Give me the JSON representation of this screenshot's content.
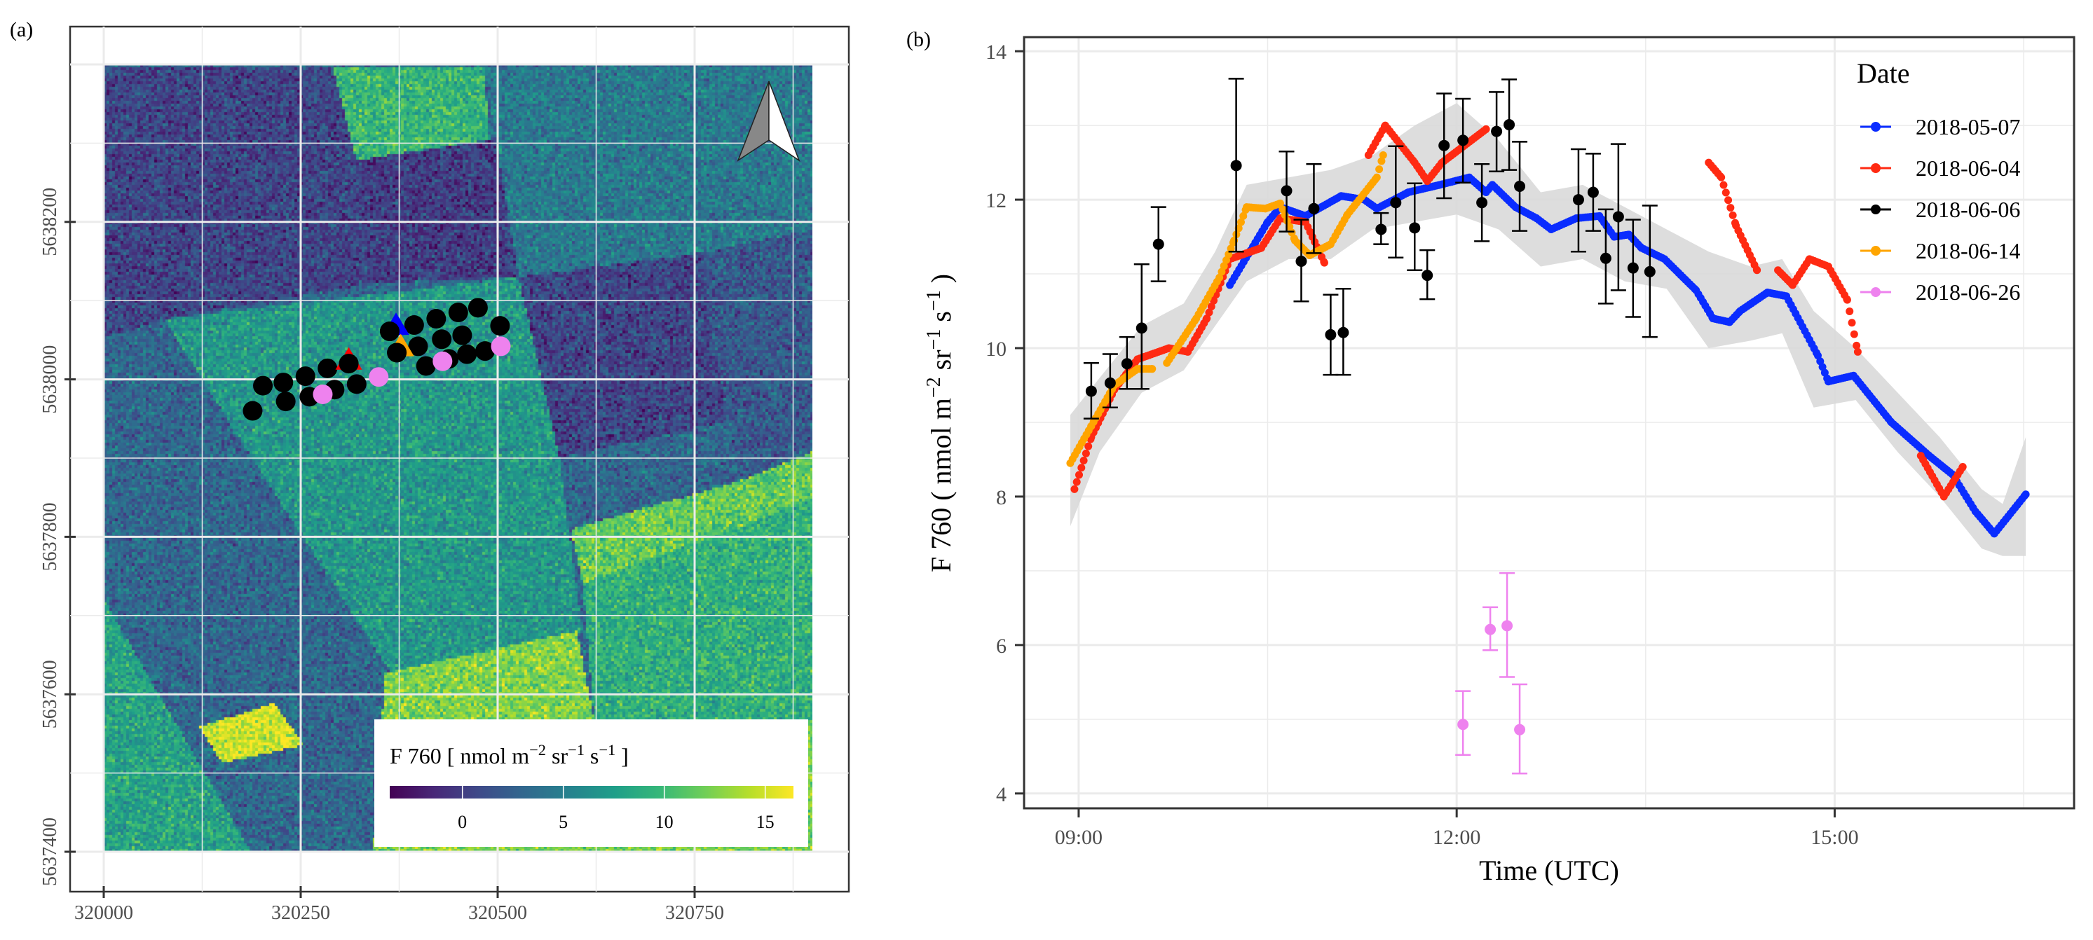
{
  "chart_data": [
    {
      "panel_label": "(a)",
      "type": "heatmap",
      "x_ticks": [
        320000,
        320250,
        320500,
        320750
      ],
      "y_ticks": [
        5637400,
        5637600,
        5637800,
        5638000,
        5638200
      ],
      "xlim": [
        320000,
        320899
      ],
      "ylim": [
        5637400,
        5638400
      ],
      "grid": true,
      "north_arrow": "top-right",
      "colorbar": {
        "title": "F 760 [ nmol  m",
        "title_sup1": "−2",
        "title_mid1": " sr",
        "title_sup2": "−1",
        "title_mid2": "  s",
        "title_sup3": "−1",
        "title_end": " ]",
        "ticks": [
          0,
          5,
          10,
          15
        ],
        "range": [
          -3.6,
          16.4
        ],
        "colormap": "viridis",
        "placement": "bottom-right"
      },
      "points": {
        "black_circles": [
          [
            320189,
            5637960
          ],
          [
            320202,
            5637992
          ],
          [
            320228,
            5637996
          ],
          [
            320231,
            5637972
          ],
          [
            320256,
            5638004
          ],
          [
            320261,
            5637978
          ],
          [
            320284,
            5638014
          ],
          [
            320293,
            5637987
          ],
          [
            320311,
            5638020
          ],
          [
            320321,
            5637994
          ],
          [
            320363,
            5638061
          ],
          [
            320372,
            5638034
          ],
          [
            320394,
            5638069
          ],
          [
            320399,
            5638042
          ],
          [
            320409,
            5638017
          ],
          [
            320422,
            5638077
          ],
          [
            320429,
            5638051
          ],
          [
            320438,
            5638026
          ],
          [
            320450,
            5638085
          ],
          [
            320455,
            5638056
          ],
          [
            320461,
            5638032
          ],
          [
            320475,
            5638091
          ],
          [
            320484,
            5638036
          ],
          [
            320503,
            5638068
          ]
        ],
        "pink_circles": [
          [
            320278,
            5637981
          ],
          [
            320349,
            5638003
          ],
          [
            320430,
            5638023
          ],
          [
            320504,
            5638042
          ]
        ],
        "triangles": [
          {
            "color": "#ff0000",
            "pos": [
              320311,
              5638023
            ]
          },
          {
            "color": "#0000ff",
            "pos": [
              320371,
              5638067
            ]
          },
          {
            "color": "#ffa500",
            "pos": [
              320377,
              5638040
            ]
          }
        ]
      }
    },
    {
      "panel_label": "(b)",
      "type": "scatter",
      "xlabel": "Time (UTC)",
      "ylabel": {
        "main": "F 760 ( nmol  m",
        "sup1": "−2",
        "mid1": "  sr",
        "sup2": "−1",
        "mid2": "  s",
        "sup3": "−1",
        "end": " )"
      },
      "x_ticks": [
        "09:00",
        "12:00",
        "15:00"
      ],
      "y_ticks": [
        4,
        6,
        8,
        10,
        12,
        14
      ],
      "xlim": [
        "08:34",
        "16:54"
      ],
      "ylim": [
        3.8,
        14.19
      ],
      "grid": true,
      "legend": {
        "title": "Date",
        "placement": "top-right"
      },
      "band_color": "#d9d9d9",
      "band": [
        [
          "08:56",
          7.6,
          9.1
        ],
        [
          "09:10",
          8.6,
          9.6
        ],
        [
          "09:30",
          9.4,
          10.3
        ],
        [
          "09:50",
          9.7,
          10.6
        ],
        [
          "10:05",
          10.3,
          11.3
        ],
        [
          "10:20",
          10.9,
          12.2
        ],
        [
          "10:40",
          11.2,
          12.3
        ],
        [
          "11:00",
          11.2,
          12.4
        ],
        [
          "11:20",
          11.6,
          12.6
        ],
        [
          "11:40",
          11.7,
          13.0
        ],
        [
          "12:00",
          11.8,
          13.3
        ],
        [
          "12:20",
          11.6,
          12.8
        ],
        [
          "12:40",
          11.1,
          12.1
        ],
        [
          "13:00",
          11.2,
          12.2
        ],
        [
          "13:20",
          10.9,
          11.9
        ],
        [
          "13:40",
          10.8,
          11.6
        ],
        [
          "14:00",
          10.0,
          11.3
        ],
        [
          "14:20",
          10.1,
          11.1
        ],
        [
          "14:35",
          10.2,
          11.2
        ],
        [
          "14:50",
          9.2,
          10.5
        ],
        [
          "15:10",
          9.3,
          10.0
        ],
        [
          "15:30",
          8.6,
          9.4
        ],
        [
          "15:50",
          8.0,
          8.8
        ],
        [
          "16:10",
          7.3,
          8.1
        ],
        [
          "16:20",
          7.2,
          7.9
        ],
        [
          "16:31",
          7.2,
          8.8
        ]
      ],
      "series": [
        {
          "name": "2018-05-07",
          "color": "#0a2cff",
          "kind": "continuous",
          "segments": [
            [
              [
                "10:12",
                10.85
              ],
              [
                "10:30",
                11.7
              ],
              [
                "10:36",
                11.9
              ],
              [
                "10:48",
                11.78
              ],
              [
                "11:05",
                12.05
              ],
              [
                "11:16",
                12.0
              ],
              [
                "11:22",
                11.88
              ],
              [
                "11:37",
                12.1
              ],
              [
                "11:52",
                12.2
              ],
              [
                "12:06",
                12.3
              ],
              [
                "12:14",
                12.1
              ],
              [
                "12:17",
                12.2
              ],
              [
                "12:28",
                11.9
              ],
              [
                "12:38",
                11.75
              ],
              [
                "12:45",
                11.6
              ],
              [
                "12:57",
                11.75
              ],
              [
                "13:08",
                11.78
              ],
              [
                "13:15",
                11.5
              ],
              [
                "13:22",
                11.53
              ],
              [
                "13:28",
                11.35
              ],
              [
                "13:39",
                11.2
              ],
              [
                "13:54",
                10.78
              ],
              [
                "14:02",
                10.4
              ],
              [
                "14:10",
                10.35
              ],
              [
                "14:15",
                10.5
              ],
              [
                "14:28",
                10.75
              ],
              [
                "14:37",
                10.7
              ],
              [
                "14:52",
                9.9
              ],
              [
                "14:57",
                9.55
              ],
              [
                "15:09",
                9.63
              ],
              [
                "15:27",
                9.0
              ],
              [
                "15:45",
                8.55
              ],
              [
                "15:56",
                8.3
              ],
              [
                "16:07",
                7.8
              ],
              [
                "16:16",
                7.5
              ],
              [
                "16:31",
                8.03
              ]
            ]
          ]
        },
        {
          "name": "2018-06-04",
          "color": "#ff2a12",
          "kind": "continuous",
          "segments": [
            [
              [
                "08:58",
                8.1
              ],
              [
                "09:06",
                8.8
              ],
              [
                "09:17",
                9.44
              ],
              [
                "09:28",
                9.85
              ],
              [
                "09:43",
                10.0
              ],
              [
                "09:52",
                9.95
              ],
              [
                "10:01",
                10.4
              ],
              [
                "10:12",
                11.2
              ],
              [
                "10:27",
                11.35
              ],
              [
                "10:36",
                11.75
              ],
              [
                "10:48",
                11.7
              ],
              [
                "10:57",
                11.15
              ]
            ],
            [
              [
                "11:18",
                12.6
              ],
              [
                "11:26",
                13.0
              ],
              [
                "11:40",
                12.5
              ],
              [
                "11:46",
                12.25
              ],
              [
                "11:53",
                12.5
              ],
              [
                "12:14",
                12.95
              ]
            ],
            [
              [
                "14:00",
                12.5
              ],
              [
                "14:06",
                12.3
              ],
              [
                "14:13",
                11.65
              ],
              [
                "14:23",
                11.05
              ]
            ],
            [
              [
                "14:33",
                11.05
              ],
              [
                "14:40",
                10.85
              ],
              [
                "14:48",
                11.2
              ],
              [
                "14:57",
                11.1
              ],
              [
                "15:06",
                10.65
              ],
              [
                "15:11",
                9.95
              ]
            ],
            [
              [
                "15:41",
                8.55
              ],
              [
                "15:52",
                8.0
              ],
              [
                "16:01",
                8.4
              ]
            ]
          ]
        },
        {
          "name": "2018-06-06",
          "color": "#000000",
          "kind": "errorbar",
          "points": [
            [
              "09:06",
              9.42,
              9.05,
              9.8
            ],
            [
              "09:15",
              9.53,
              9.2,
              9.92
            ],
            [
              "09:23",
              9.79,
              9.45,
              10.15
            ],
            [
              "09:30",
              10.27,
              9.45,
              11.13
            ],
            [
              "09:38",
              11.4,
              10.9,
              11.9
            ],
            [
              "10:15",
              12.46,
              11.3,
              13.63
            ],
            [
              "10:39",
              12.12,
              11.57,
              12.65
            ],
            [
              "10:46",
              11.17,
              10.63,
              11.73
            ],
            [
              "10:52",
              11.88,
              11.28,
              12.48
            ],
            [
              "11:00",
              10.18,
              9.64,
              10.72
            ],
            [
              "11:06",
              10.21,
              9.64,
              10.8
            ],
            [
              "11:24",
              11.6,
              11.4,
              11.82
            ],
            [
              "11:31",
              11.96,
              11.22,
              12.72
            ],
            [
              "11:40",
              11.62,
              11.05,
              12.22
            ],
            [
              "11:46",
              10.98,
              10.66,
              11.32
            ],
            [
              "11:54",
              12.73,
              12.02,
              13.43
            ],
            [
              "12:03",
              12.8,
              12.23,
              13.36
            ],
            [
              "12:12",
              11.96,
              11.44,
              12.48
            ],
            [
              "12:19",
              12.92,
              12.38,
              13.45
            ],
            [
              "12:25",
              13.01,
              12.4,
              13.62
            ],
            [
              "12:30",
              12.18,
              11.58,
              12.78
            ],
            [
              "12:58",
              12.0,
              11.3,
              12.68
            ],
            [
              "13:05",
              12.1,
              11.58,
              12.62
            ],
            [
              "13:11",
              11.21,
              10.6,
              11.87
            ],
            [
              "13:17",
              11.77,
              10.78,
              12.75
            ],
            [
              "13:24",
              11.08,
              10.42,
              11.73
            ],
            [
              "13:32",
              11.03,
              10.15,
              11.92
            ]
          ]
        },
        {
          "name": "2018-06-14",
          "color": "#ffa500",
          "kind": "continuous",
          "segments": [
            [
              [
                "08:56",
                8.45
              ],
              [
                "09:06",
                8.95
              ],
              [
                "09:17",
                9.5
              ],
              [
                "09:28",
                9.72
              ],
              [
                "09:35",
                9.72
              ]
            ],
            [
              [
                "09:42",
                9.8
              ],
              [
                "09:56",
                10.4
              ],
              [
                "10:07",
                10.95
              ],
              [
                "10:14",
                11.45
              ],
              [
                "10:20",
                11.9
              ],
              [
                "10:29",
                11.88
              ],
              [
                "10:36",
                11.95
              ],
              [
                "10:43",
                11.45
              ],
              [
                "10:50",
                11.25
              ],
              [
                "11:00",
                11.4
              ],
              [
                "11:08",
                11.8
              ],
              [
                "11:22",
                12.3
              ],
              [
                "11:25",
                12.6
              ]
            ]
          ]
        },
        {
          "name": "2018-06-26",
          "color": "#ee82ee",
          "kind": "errorbar",
          "points": [
            [
              "12:03",
              4.93,
              4.52,
              5.38
            ],
            [
              "12:16",
              6.21,
              5.93,
              6.51
            ],
            [
              "12:24",
              6.26,
              5.57,
              6.97
            ],
            [
              "12:30",
              4.86,
              4.27,
              5.47
            ]
          ]
        }
      ]
    }
  ]
}
